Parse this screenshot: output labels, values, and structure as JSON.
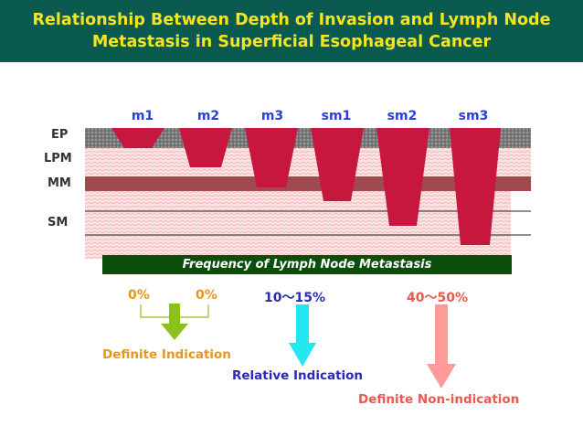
{
  "title": {
    "line1": "Relationship Between Depth of Invasion  and Lymph Node",
    "line2": "Metastasis in Superficial Esophageal Cancer"
  },
  "layers": {
    "ep": "EP",
    "lpm": "LPM",
    "mm": "MM",
    "sm": "SM"
  },
  "stages": [
    "m1",
    "m2",
    "m3",
    "sm1",
    "sm2",
    "sm3"
  ],
  "banner": "Frequency of Lymph Node Metastasis",
  "frequencies": {
    "m1": "0%",
    "m2": "0%",
    "m3": "10～15%",
    "sm": "40～50%"
  },
  "indications": {
    "definite": "Definite Indication",
    "relative": "Relative Indication",
    "non": "Definite Non-indication"
  },
  "colors": {
    "header_bg": "#0b5a50",
    "title": "#f5e51f",
    "tumor": "#c8173f",
    "mm_band": "#a04a50",
    "stage_label": "#2b3fd6",
    "banner": "#0b4d0b",
    "green": "#8bc21a",
    "cyan": "#22e6f0",
    "pink": "#ff9a9a",
    "definite_text": "#e8961a",
    "relative_text": "#2a2ab8",
    "non_text": "#e85a50"
  }
}
